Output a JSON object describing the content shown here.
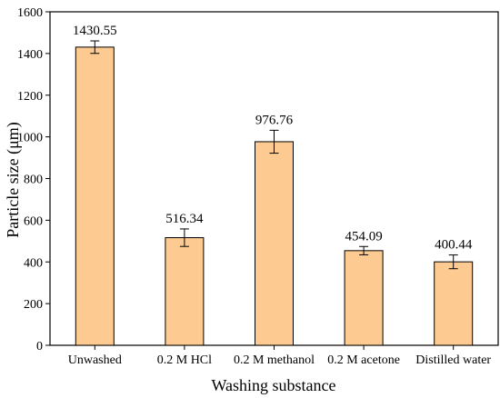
{
  "chart_data": {
    "type": "bar",
    "title": "",
    "xlabel": "Washing substance",
    "ylabel": "Particle size (μm)",
    "ylim": [
      0,
      1600
    ],
    "yticks": [
      0,
      200,
      400,
      600,
      800,
      1000,
      1200,
      1400,
      1600
    ],
    "categories": [
      "Unwashed",
      "0.2 M HCl",
      "0.2 M methanol",
      "0.2 M acetone",
      "Distilled water"
    ],
    "values": [
      1430.55,
      516.34,
      976.76,
      454.09,
      400.44
    ],
    "value_labels": [
      "1430.55",
      "516.34",
      "976.76",
      "454.09",
      "400.44"
    ],
    "errors": [
      30,
      42,
      55,
      20,
      33
    ],
    "grid": false,
    "legend": "none",
    "colors": {
      "bar_fill": "#fdca91",
      "bar_stroke": "#000000",
      "axis": "#000000",
      "error_bar": "#000000"
    }
  }
}
